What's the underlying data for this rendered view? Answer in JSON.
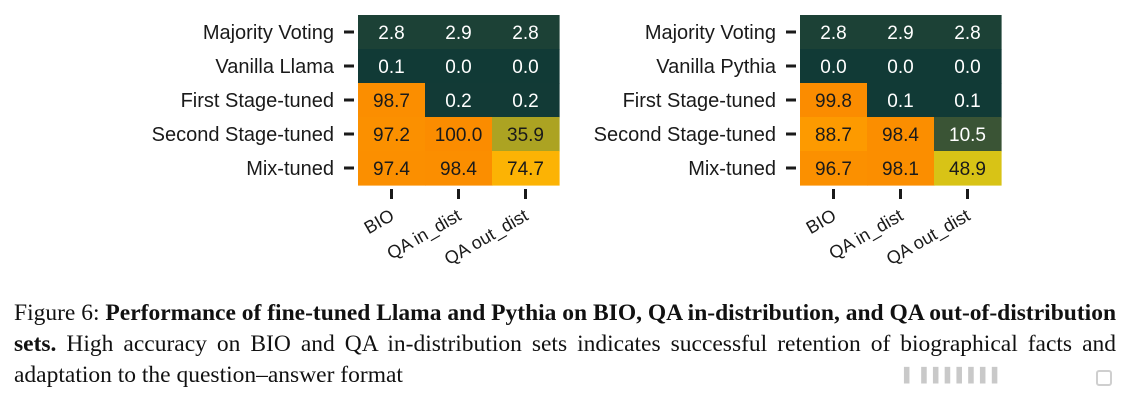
{
  "chart_data": [
    {
      "type": "heatmap",
      "rows": [
        "Majority Voting",
        "Vanilla Llama",
        "First Stage-tuned",
        "Second Stage-tuned",
        "Mix-tuned"
      ],
      "columns": [
        "BIO",
        "QA in_dist",
        "QA out_dist"
      ],
      "values": [
        [
          2.8,
          2.9,
          2.8
        ],
        [
          0.1,
          0.0,
          0.0
        ],
        [
          98.7,
          0.2,
          0.2
        ],
        [
          97.2,
          100.0,
          35.9
        ],
        [
          97.4,
          98.4,
          74.7
        ]
      ],
      "colorscale": [
        "#113a36",
        "#5f6b34",
        "#c0b21d",
        "#f6d90e",
        "#fea500",
        "#fb8c00"
      ],
      "value_range": [
        0,
        100
      ]
    },
    {
      "type": "heatmap",
      "rows": [
        "Majority Voting",
        "Vanilla Pythia",
        "First Stage-tuned",
        "Second Stage-tuned",
        "Mix-tuned"
      ],
      "columns": [
        "BIO",
        "QA in_dist",
        "QA out_dist"
      ],
      "values": [
        [
          2.8,
          2.9,
          2.8
        ],
        [
          0.0,
          0.0,
          0.0
        ],
        [
          99.8,
          0.1,
          0.1
        ],
        [
          88.7,
          98.4,
          10.5
        ],
        [
          96.7,
          98.1,
          48.9
        ]
      ],
      "colorscale": [
        "#113a36",
        "#5f6b34",
        "#c0b21d",
        "#f6d90e",
        "#fea500",
        "#fb8c00"
      ],
      "value_range": [
        0,
        100
      ]
    }
  ],
  "caption": {
    "label": "Figure 6:",
    "bold": "Performance of fine-tuned Llama and Pythia on BIO, QA in-distribution, and QA out-of-distribution sets.",
    "text": "High accuracy on BIO and QA in-distribution sets indicates successful retention of biographical facts and adaptation to the question–answer format"
  }
}
